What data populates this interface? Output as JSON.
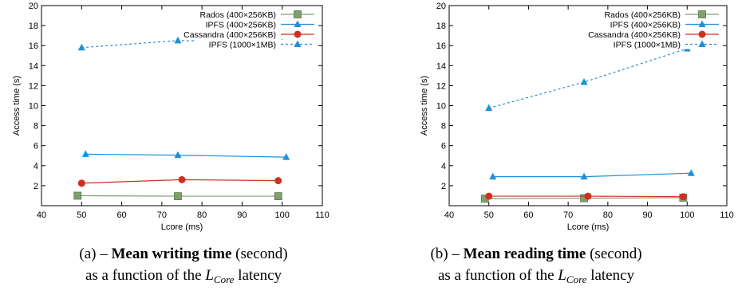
{
  "chart_data": [
    {
      "type": "line",
      "xlabel": "Lcore (ms)",
      "ylabel": "Access time (s)",
      "xlim": [
        40,
        110
      ],
      "ylim": [
        0,
        20
      ],
      "xticks": [
        40,
        50,
        60,
        70,
        80,
        90,
        100,
        110
      ],
      "yticks": [
        2,
        4,
        6,
        8,
        10,
        12,
        14,
        16,
        18,
        20
      ],
      "grid": false,
      "legend": "top-right",
      "series": [
        {
          "name": "Rados (400×256KB)",
          "marker": "square",
          "color": "#7f9f6f",
          "dash": "solid",
          "x": [
            49,
            74,
            99
          ],
          "y": [
            1.0,
            0.95,
            0.95
          ]
        },
        {
          "name": "IPFS (400×256KB)",
          "marker": "triangle",
          "color": "#1f8fd8",
          "dash": "solid",
          "x": [
            51,
            74,
            101
          ],
          "y": [
            5.15,
            5.05,
            4.85
          ]
        },
        {
          "name": "Cassandra (400×256KB)",
          "marker": "circle",
          "color": "#d03020",
          "dash": "solid",
          "x": [
            50,
            75,
            99
          ],
          "y": [
            2.25,
            2.6,
            2.5
          ]
        },
        {
          "name": "IPFS (1000×1MB)",
          "marker": "triangle",
          "color": "#1f8fd8",
          "dash": "dashed",
          "x": [
            50,
            74,
            100
          ],
          "y": [
            15.8,
            16.5,
            16.4
          ]
        }
      ]
    },
    {
      "type": "line",
      "xlabel": "Lcore (ms)",
      "ylabel": "Access time (s)",
      "xlim": [
        40,
        110
      ],
      "ylim": [
        0,
        20
      ],
      "xticks": [
        40,
        50,
        60,
        70,
        80,
        90,
        100,
        110
      ],
      "yticks": [
        2,
        4,
        6,
        8,
        10,
        12,
        14,
        16,
        18,
        20
      ],
      "grid": false,
      "legend": "top-right",
      "series": [
        {
          "name": "Rados (400×256KB)",
          "marker": "square",
          "color": "#7f9f6f",
          "dash": "solid",
          "x": [
            49,
            74,
            99
          ],
          "y": [
            0.7,
            0.75,
            0.8
          ]
        },
        {
          "name": "IPFS (400×256KB)",
          "marker": "triangle",
          "color": "#1f8fd8",
          "dash": "solid",
          "x": [
            51,
            74,
            101
          ],
          "y": [
            2.9,
            2.9,
            3.25
          ]
        },
        {
          "name": "Cassandra (400×256KB)",
          "marker": "circle",
          "color": "#d03020",
          "dash": "solid",
          "x": [
            50,
            75,
            99
          ],
          "y": [
            0.95,
            0.95,
            0.9
          ]
        },
        {
          "name": "IPFS (1000×1MB)",
          "marker": "triangle",
          "color": "#1f8fd8",
          "dash": "dashed",
          "x": [
            50,
            74,
            100
          ],
          "y": [
            9.75,
            12.35,
            15.7
          ]
        }
      ]
    }
  ],
  "captions": [
    {
      "prefix": "(a) – ",
      "bold": "Mean writing time",
      "suffix": " (second)",
      "line2a": "as a function of the ",
      "var": "L",
      "sub": "Core",
      "line2b": " latency"
    },
    {
      "prefix": "(b) – ",
      "bold": "Mean reading time",
      "suffix": " (second)",
      "line2a": "as a function of the ",
      "var": "L",
      "sub": "Core",
      "line2b": " latency"
    }
  ]
}
